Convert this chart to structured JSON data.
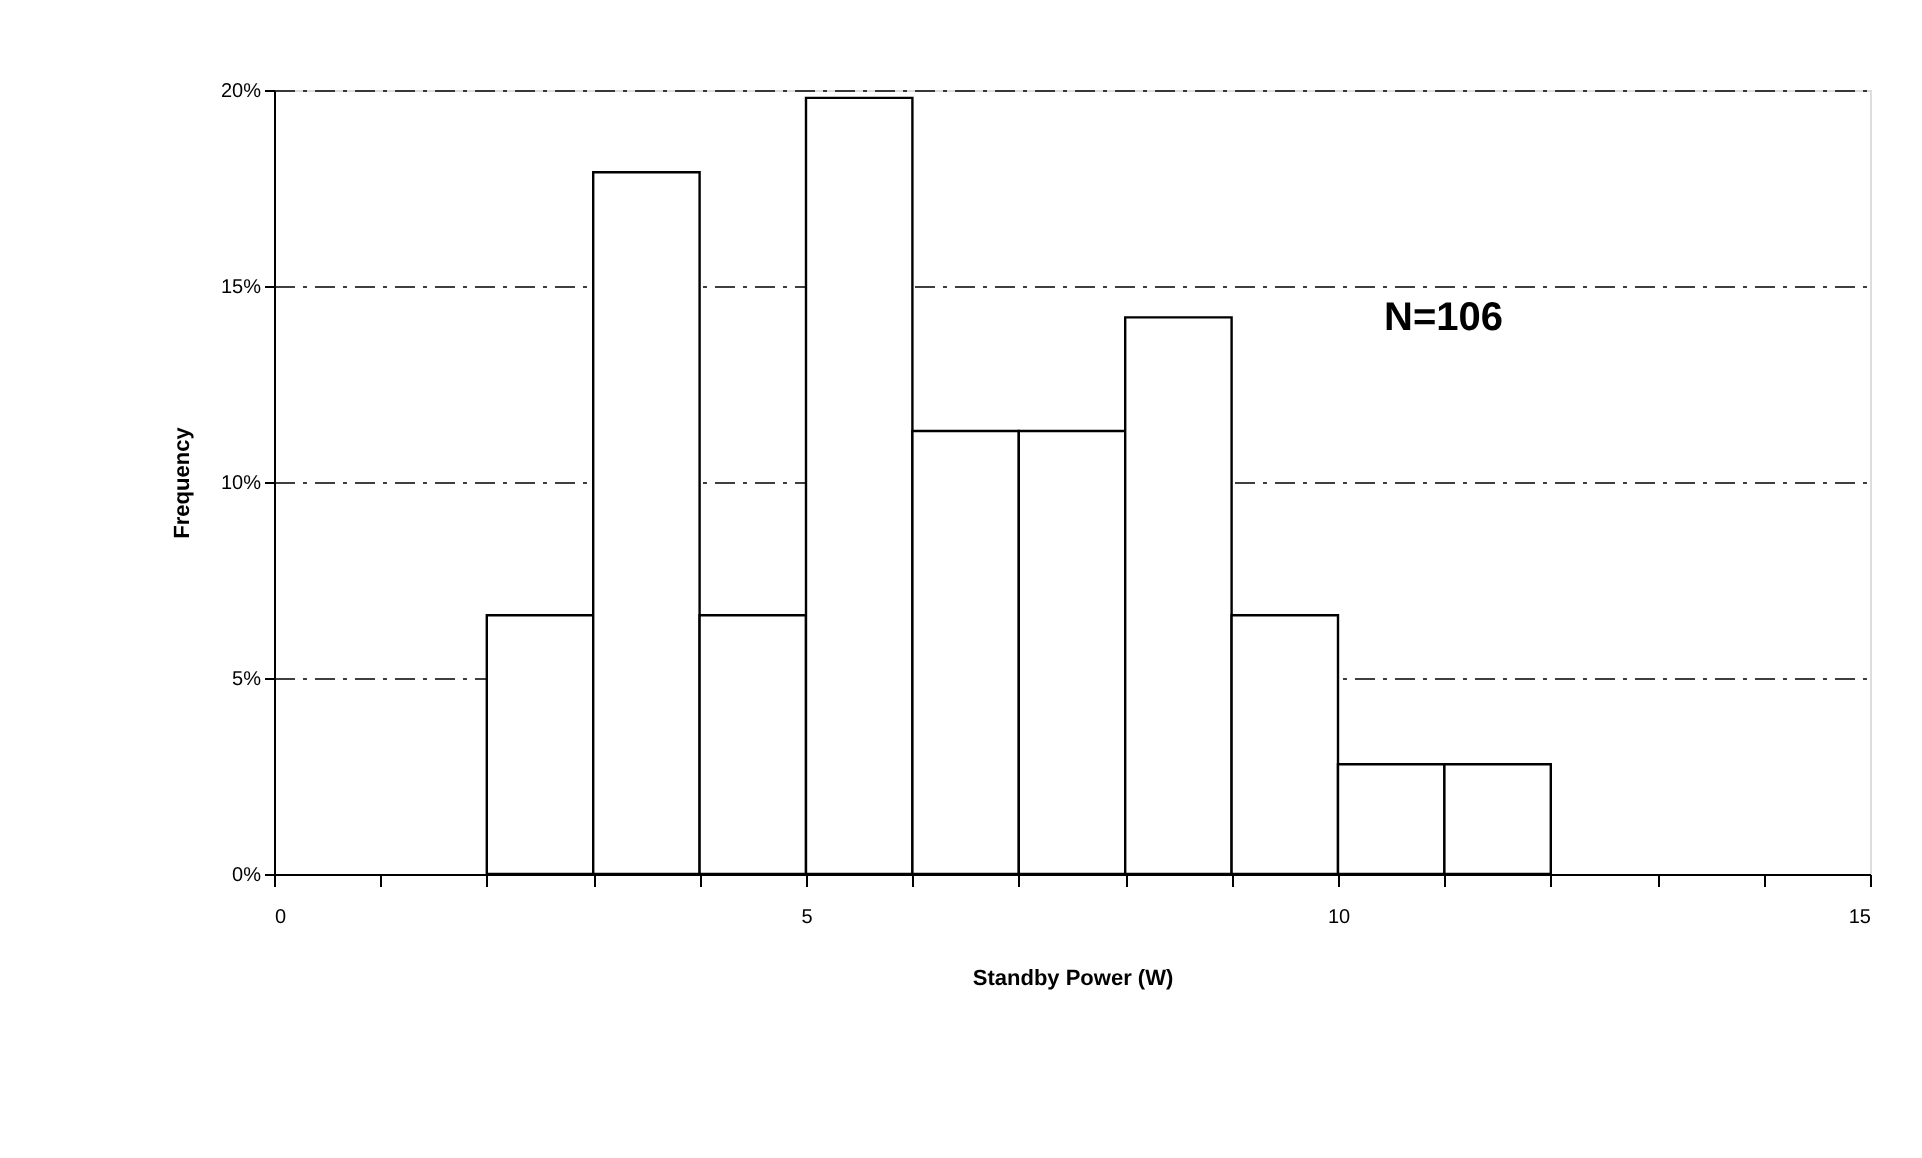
{
  "chart_data": {
    "type": "histogram",
    "xlabel": "Standby Power (W)",
    "ylabel": "Frequency",
    "bins": [
      2,
      3,
      4,
      5,
      6,
      7,
      8,
      9,
      10,
      11,
      12
    ],
    "values": [
      6.6,
      17.9,
      6.6,
      19.8,
      11.3,
      11.3,
      14.2,
      6.6,
      2.8,
      2.8
    ],
    "color": "#ffffff",
    "xlim": [
      0,
      15
    ],
    "ylim": [
      0,
      20
    ],
    "xticks": [
      0,
      {
        "value": 1,
        "label": null
      },
      {
        "value": 2,
        "label": null
      },
      {
        "value": 3,
        "label": null
      },
      {
        "value": 4,
        "label": null
      },
      5,
      {
        "value": 6,
        "label": null
      },
      {
        "value": 7,
        "label": null
      },
      {
        "value": 8,
        "label": null
      },
      {
        "value": 9,
        "label": null
      },
      10,
      {
        "value": 11,
        "label": null
      },
      {
        "value": 12,
        "label": null
      },
      {
        "value": 13,
        "label": null
      },
      {
        "value": 14,
        "label": null
      },
      15
    ],
    "yticks": [
      {
        "value": 0,
        "label": "0%"
      },
      {
        "value": 5,
        "label": "5%"
      },
      {
        "value": 10,
        "label": "10%"
      },
      {
        "value": 15,
        "label": "15%"
      },
      {
        "value": 20,
        "label": "20%"
      }
    ],
    "grid": "y",
    "annotations": [
      "N=106"
    ]
  }
}
